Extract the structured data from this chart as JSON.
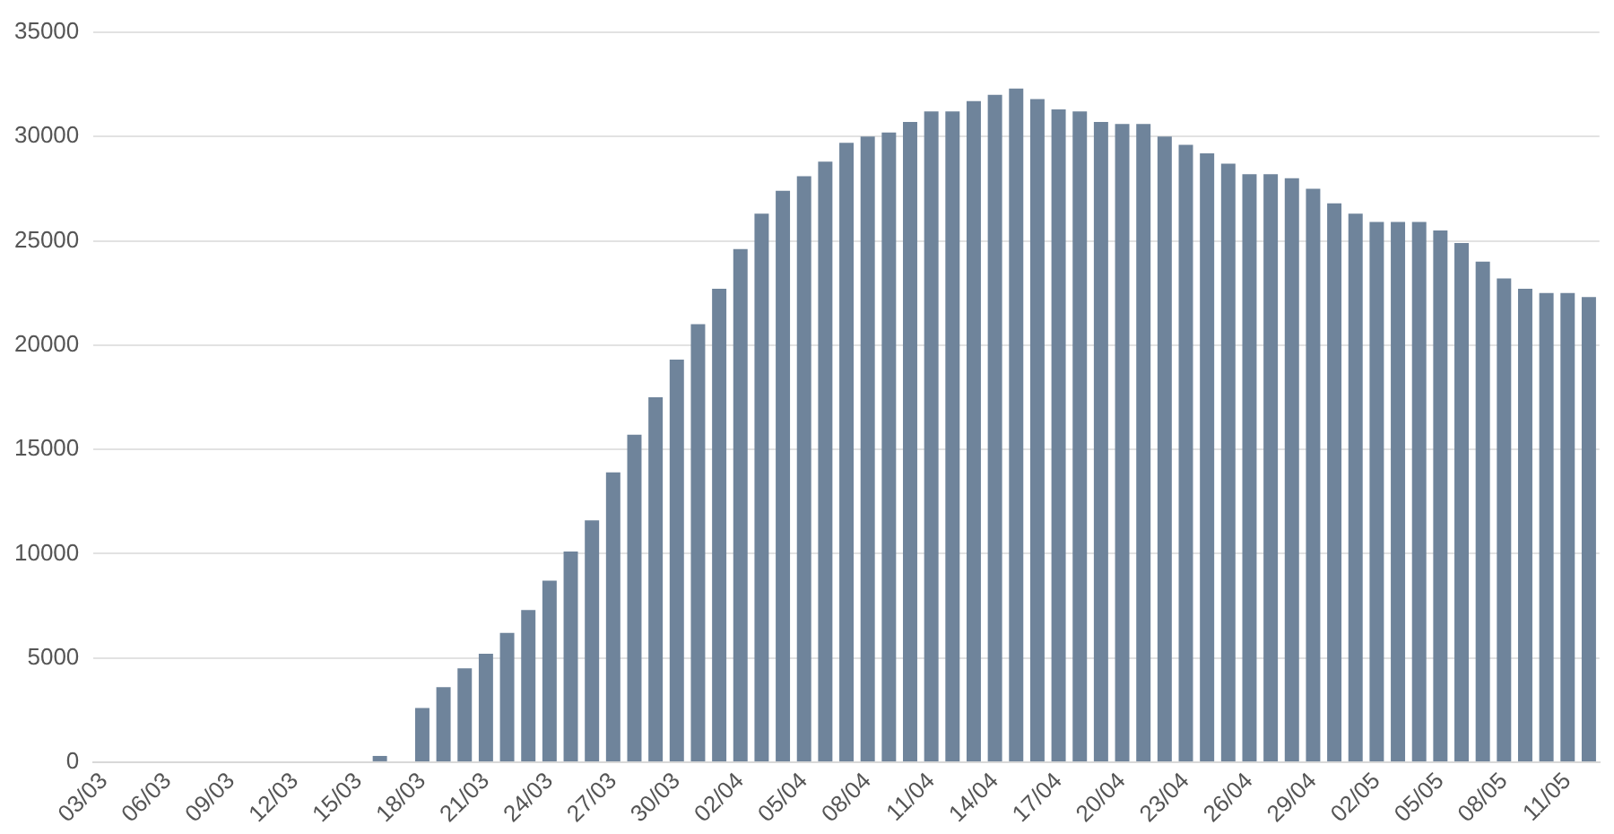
{
  "chart_data": {
    "type": "bar",
    "categories": [
      "03/03",
      null,
      null,
      "06/03",
      null,
      null,
      "09/03",
      null,
      null,
      "12/03",
      null,
      null,
      "15/03",
      null,
      null,
      "18/03",
      null,
      null,
      "21/03",
      null,
      null,
      "24/03",
      null,
      null,
      "27/03",
      null,
      null,
      "30/03",
      null,
      null,
      "02/04",
      null,
      null,
      "05/04",
      null,
      null,
      "08/04",
      null,
      null,
      "11/04",
      null,
      null,
      "14/04",
      null,
      null,
      "17/04",
      null,
      null,
      "20/04",
      null,
      null,
      "23/04",
      null,
      null,
      "26/04",
      null,
      null,
      "29/04",
      null,
      null,
      "02/05",
      null,
      null,
      "05/05",
      null,
      null,
      "08/05",
      null,
      null,
      "11/05",
      null
    ],
    "values": [
      0,
      0,
      0,
      0,
      0,
      0,
      0,
      0,
      0,
      0,
      0,
      0,
      0,
      300,
      0,
      2600,
      3600,
      4500,
      5200,
      6200,
      7300,
      8700,
      10100,
      11600,
      13900,
      15700,
      17500,
      19300,
      21000,
      22700,
      24600,
      26300,
      27400,
      28100,
      28800,
      29700,
      30000,
      30200,
      30700,
      31200,
      31200,
      31700,
      32000,
      32300,
      31800,
      31300,
      31200,
      30700,
      30600,
      30600,
      30000,
      29600,
      29200,
      28700,
      28200,
      28200,
      28000,
      27500,
      26800,
      26300,
      25900,
      25900,
      25900,
      25500,
      24900,
      24000,
      23200,
      22700,
      22500,
      22500,
      22300
    ],
    "color": "#6f849b",
    "ylim": [
      0,
      35000
    ],
    "yticks": [
      0,
      5000,
      10000,
      15000,
      20000,
      25000,
      30000,
      35000
    ],
    "grid": "y",
    "legend": false
  }
}
